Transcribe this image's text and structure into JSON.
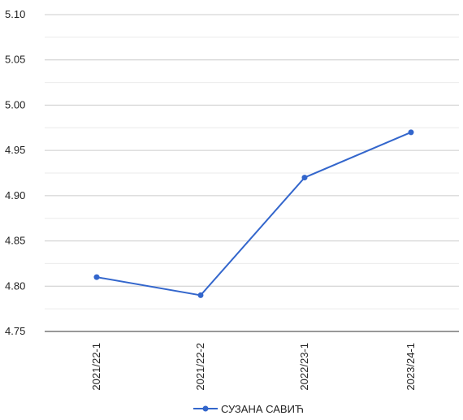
{
  "chart_data": {
    "type": "line",
    "categories": [
      "2021/22-1",
      "2021/22-2",
      "2022/23-1",
      "2023/24-1"
    ],
    "series": [
      {
        "name": "СУЗАНА САВИЋ",
        "values": [
          4.81,
          4.79,
          4.92,
          4.97
        ],
        "color": "#3366cc"
      }
    ],
    "y_ticks": [
      "4.75",
      "4.80",
      "4.85",
      "4.90",
      "4.95",
      "5.00",
      "5.05",
      "5.10"
    ],
    "ylim": [
      4.75,
      5.1
    ],
    "grid": true,
    "legend_position": "bottom"
  }
}
